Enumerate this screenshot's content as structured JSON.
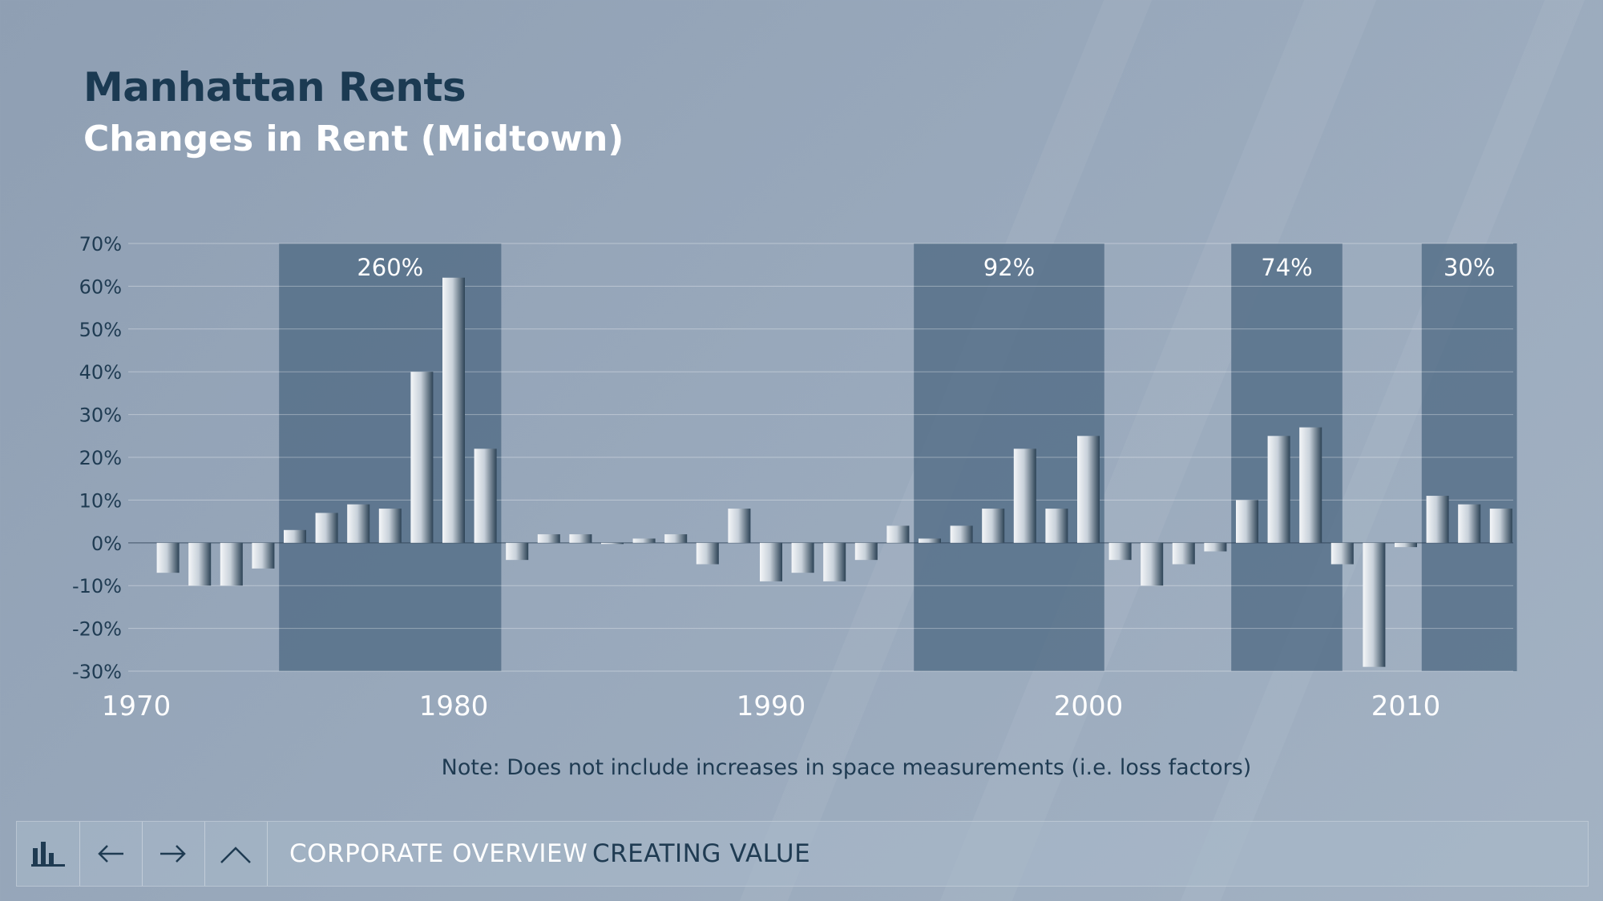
{
  "title": "Manhattan Rents",
  "subtitle": "Changes in Rent (Midtown)",
  "note": "Note: Does not include increases in space measurements (i.e. loss factors)",
  "colors": {
    "title": "#1b3a52",
    "band": "#4f6a84",
    "axis_text": "#1f3b52",
    "nav_active": "#1f3b52",
    "nav_inactive": "#ffffff"
  },
  "nav": {
    "icons": [
      "bar-chart-icon",
      "arrow-left-icon",
      "arrow-right-icon",
      "chevron-up-icon"
    ],
    "links": [
      "CORPORATE OVERVIEW",
      "CREATING VALUE"
    ]
  },
  "chart_data": {
    "type": "bar",
    "ylim": [
      -30,
      70
    ],
    "yticks": [
      70,
      60,
      50,
      40,
      30,
      20,
      10,
      0,
      -10,
      -20,
      -30
    ],
    "ytick_labels": [
      "70%",
      "60%",
      "50%",
      "40%",
      "30%",
      "20%",
      "10%",
      "0%",
      "-10%",
      "-20%",
      "-30%"
    ],
    "xlim": [
      1970,
      2014
    ],
    "xticks": [
      1970,
      1980,
      1990,
      2000,
      2010
    ],
    "xtick_labels": [
      "1970",
      "1980",
      "1990",
      "2000",
      "2010"
    ],
    "grid": true,
    "x": [
      1971,
      1972,
      1973,
      1974,
      1975,
      1976,
      1977,
      1978,
      1979,
      1980,
      1981,
      1982,
      1983,
      1984,
      1985,
      1986,
      1987,
      1988,
      1989,
      1990,
      1991,
      1992,
      1993,
      1994,
      1995,
      1996,
      1997,
      1998,
      1999,
      2000,
      2001,
      2002,
      2003,
      2004,
      2005,
      2006,
      2007,
      2008,
      2009,
      2010,
      2011,
      2012,
      2013
    ],
    "values": [
      -7,
      -10,
      -10,
      -6,
      3,
      7,
      9,
      8,
      40,
      62,
      22,
      -4,
      2,
      2,
      0,
      1,
      2,
      -5,
      8,
      -9,
      -7,
      -9,
      -4,
      4,
      1,
      4,
      8,
      22,
      8,
      25,
      -4,
      -10,
      -5,
      -2,
      10,
      25,
      27,
      -5,
      -29,
      -1,
      11,
      9,
      8
    ],
    "bands": [
      {
        "start": 1974.5,
        "end": 1981.5,
        "label": "260%"
      },
      {
        "start": 1994.5,
        "end": 2000.5,
        "label": "92%"
      },
      {
        "start": 2004.5,
        "end": 2008.0,
        "label": "74%"
      },
      {
        "start": 2010.5,
        "end": 2013.5,
        "label": "30%"
      }
    ]
  }
}
